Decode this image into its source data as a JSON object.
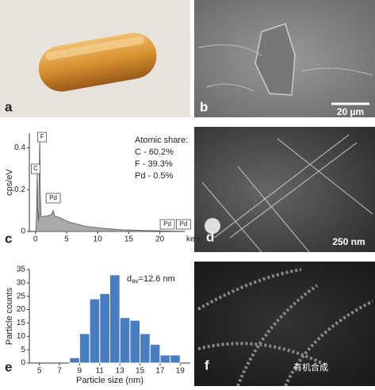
{
  "chart_data": [
    {
      "type": "area",
      "ylabel": "cps/eV",
      "xlabel": "keV",
      "x": [
        0,
        0.1,
        0.2,
        0.28,
        0.35,
        0.5,
        0.6,
        0.68,
        0.75,
        0.9,
        1.2,
        1.5,
        2,
        2.5,
        2.84,
        3.1,
        3.5,
        4,
        5,
        6,
        7,
        8,
        10,
        12,
        14,
        16,
        18,
        20,
        22,
        24
      ],
      "values": [
        0,
        0.02,
        0.15,
        0.3,
        0.1,
        0.05,
        0.3,
        0.47,
        0.2,
        0.07,
        0.07,
        0.075,
        0.075,
        0.08,
        0.1,
        0.075,
        0.07,
        0.065,
        0.05,
        0.04,
        0.032,
        0.025,
        0.018,
        0.012,
        0.008,
        0.006,
        0.004,
        0.003,
        0.002,
        0.001
      ],
      "color": "#a9a9a9",
      "xlim": [
        -1,
        24
      ],
      "ylim": [
        0,
        0.47
      ],
      "xticks": [
        0,
        5,
        10,
        15,
        20
      ],
      "yticks": [
        0,
        0.2,
        0.4
      ],
      "peaks": [
        {
          "text": "C",
          "x": 0.28
        },
        {
          "text": "F",
          "x": 0.68
        },
        {
          "text": "Pd",
          "x": 2.84
        },
        {
          "text": "Pd",
          "x": 21.2
        },
        {
          "text": "Pd",
          "x": 23.8
        }
      ],
      "annotations": [
        "Atomic share:",
        "C - 60.2%",
        "F - 39.3%",
        "Pd - 0.5%"
      ]
    },
    {
      "type": "histogram",
      "xlabel": "Particle size (nm)",
      "ylabel": "Particle counts",
      "bins": [
        8,
        9,
        10,
        11,
        12,
        13,
        14,
        15,
        16,
        17,
        18,
        19
      ],
      "values": [
        2,
        11,
        24,
        26,
        33,
        17,
        16,
        11,
        7,
        3,
        3
      ],
      "color": "#4a7cc0",
      "xlim": [
        4,
        20
      ],
      "ylim": [
        0,
        35
      ],
      "xticks": [
        5,
        7,
        9,
        11,
        13,
        15,
        17,
        19
      ],
      "yticks": [
        0,
        5,
        10,
        15,
        20,
        25,
        30,
        35
      ],
      "annotation": {
        "main": "d",
        "sub": "av",
        "rest": "=12.6 nm"
      }
    }
  ],
  "panels": {
    "labels": [
      "a",
      "b",
      "c",
      "d",
      "e",
      "f"
    ],
    "scale_bars": [
      "20 µm",
      "250 nm"
    ]
  },
  "watermark": "有机合成"
}
